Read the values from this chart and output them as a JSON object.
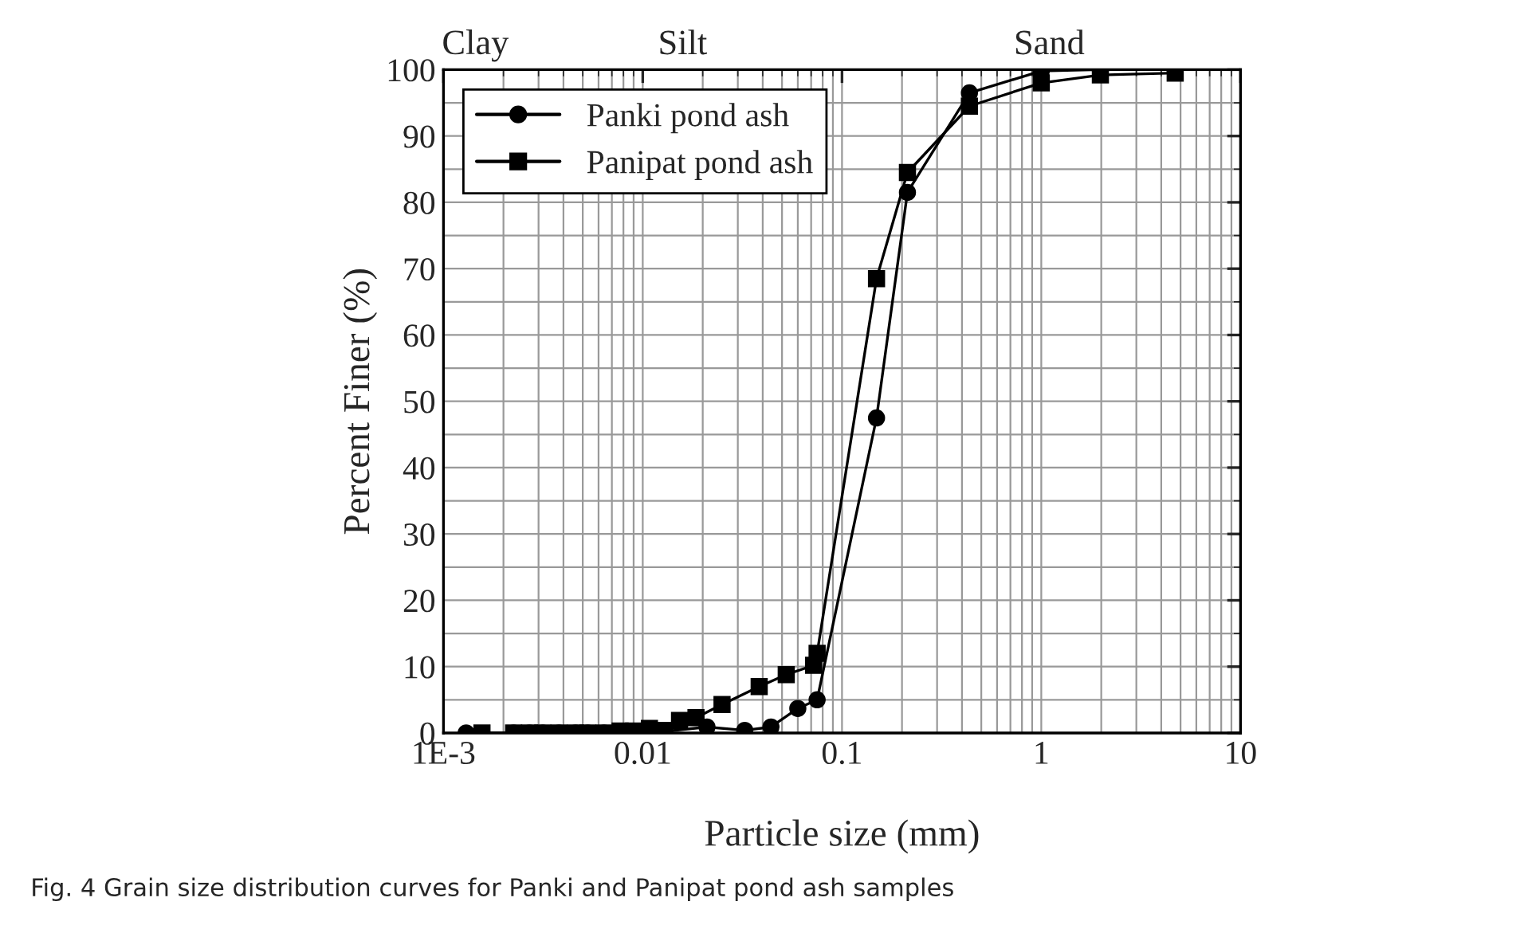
{
  "chart_data": {
    "type": "line",
    "xlabel": "Particle size (mm)",
    "ylabel": "Percent Finer (%)",
    "log": "x",
    "xlim": [
      0.001,
      10
    ],
    "ylim": [
      0,
      100
    ],
    "xticks": [
      {
        "value": 0.001,
        "label": "1E-3"
      },
      0.01,
      0.1,
      1,
      10
    ],
    "yticks": [
      0,
      10,
      20,
      30,
      40,
      50,
      60,
      70,
      80,
      90,
      100
    ],
    "grid": true,
    "legend": "top left",
    "line_style": "solid",
    "series": [
      {
        "name": "Panki pond ash",
        "color": "#000000",
        "marker": "circle",
        "x": [
          0.0013,
          0.00225,
          0.0027,
          0.00315,
          0.0038,
          0.0046,
          0.0053,
          0.0064,
          0.0077,
          0.009,
          0.0108,
          0.021,
          0.0325,
          0.044,
          0.06,
          0.075,
          0.149,
          0.213,
          0.436,
          1.0,
          1.98,
          4.7
        ],
        "values": [
          0,
          0,
          0,
          0,
          0,
          0,
          0,
          0,
          0,
          0,
          0,
          0.9,
          0.4,
          0.9,
          3.7,
          5.0,
          47.5,
          81.5,
          96.5,
          99.8,
          100,
          100
        ]
      },
      {
        "name": "Panipat pond ash",
        "color": "#000000",
        "marker": "square",
        "x": [
          0.00156,
          0.00225,
          0.0027,
          0.00315,
          0.0038,
          0.0046,
          0.0053,
          0.0064,
          0.0077,
          0.009,
          0.0108,
          0.0129,
          0.0153,
          0.0185,
          0.025,
          0.0384,
          0.0525,
          0.072,
          0.075,
          0.149,
          0.213,
          0.436,
          1.0,
          1.98,
          4.7
        ],
        "values": [
          0,
          0,
          0,
          0,
          0,
          0,
          0,
          0,
          0.3,
          0.3,
          0.7,
          0.4,
          1.9,
          2.3,
          4.3,
          7.0,
          8.8,
          10.2,
          12.0,
          68.5,
          84.5,
          94.5,
          98.0,
          99.2,
          99.5
        ]
      }
    ],
    "annotations": [
      "Clay",
      "Silt",
      "Sand",
      "Fig. 4 Grain size distribution curves for Panki and Panipat pond ash samples"
    ]
  }
}
